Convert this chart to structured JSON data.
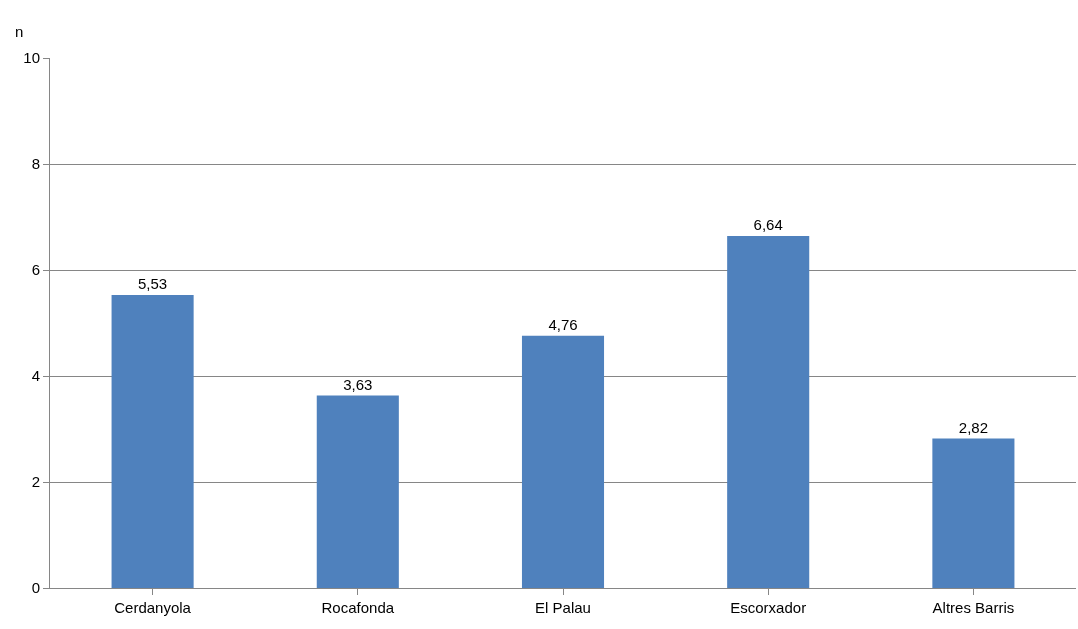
{
  "chart_data": {
    "type": "bar",
    "ylabel": "n",
    "categories": [
      "Cerdanyola",
      "Rocafonda",
      "El Palau",
      "Escorxador",
      "Altres Barris"
    ],
    "values": [
      5.53,
      3.63,
      4.76,
      6.64,
      2.82
    ],
    "value_labels": [
      "5,53",
      "3,63",
      "4,76",
      "6,64",
      "2,82"
    ],
    "color": "#4f81bd",
    "ylim": [
      0,
      10
    ],
    "yticks": [
      0,
      2,
      4,
      6,
      8,
      10
    ],
    "grid": "y",
    "legend": false
  }
}
